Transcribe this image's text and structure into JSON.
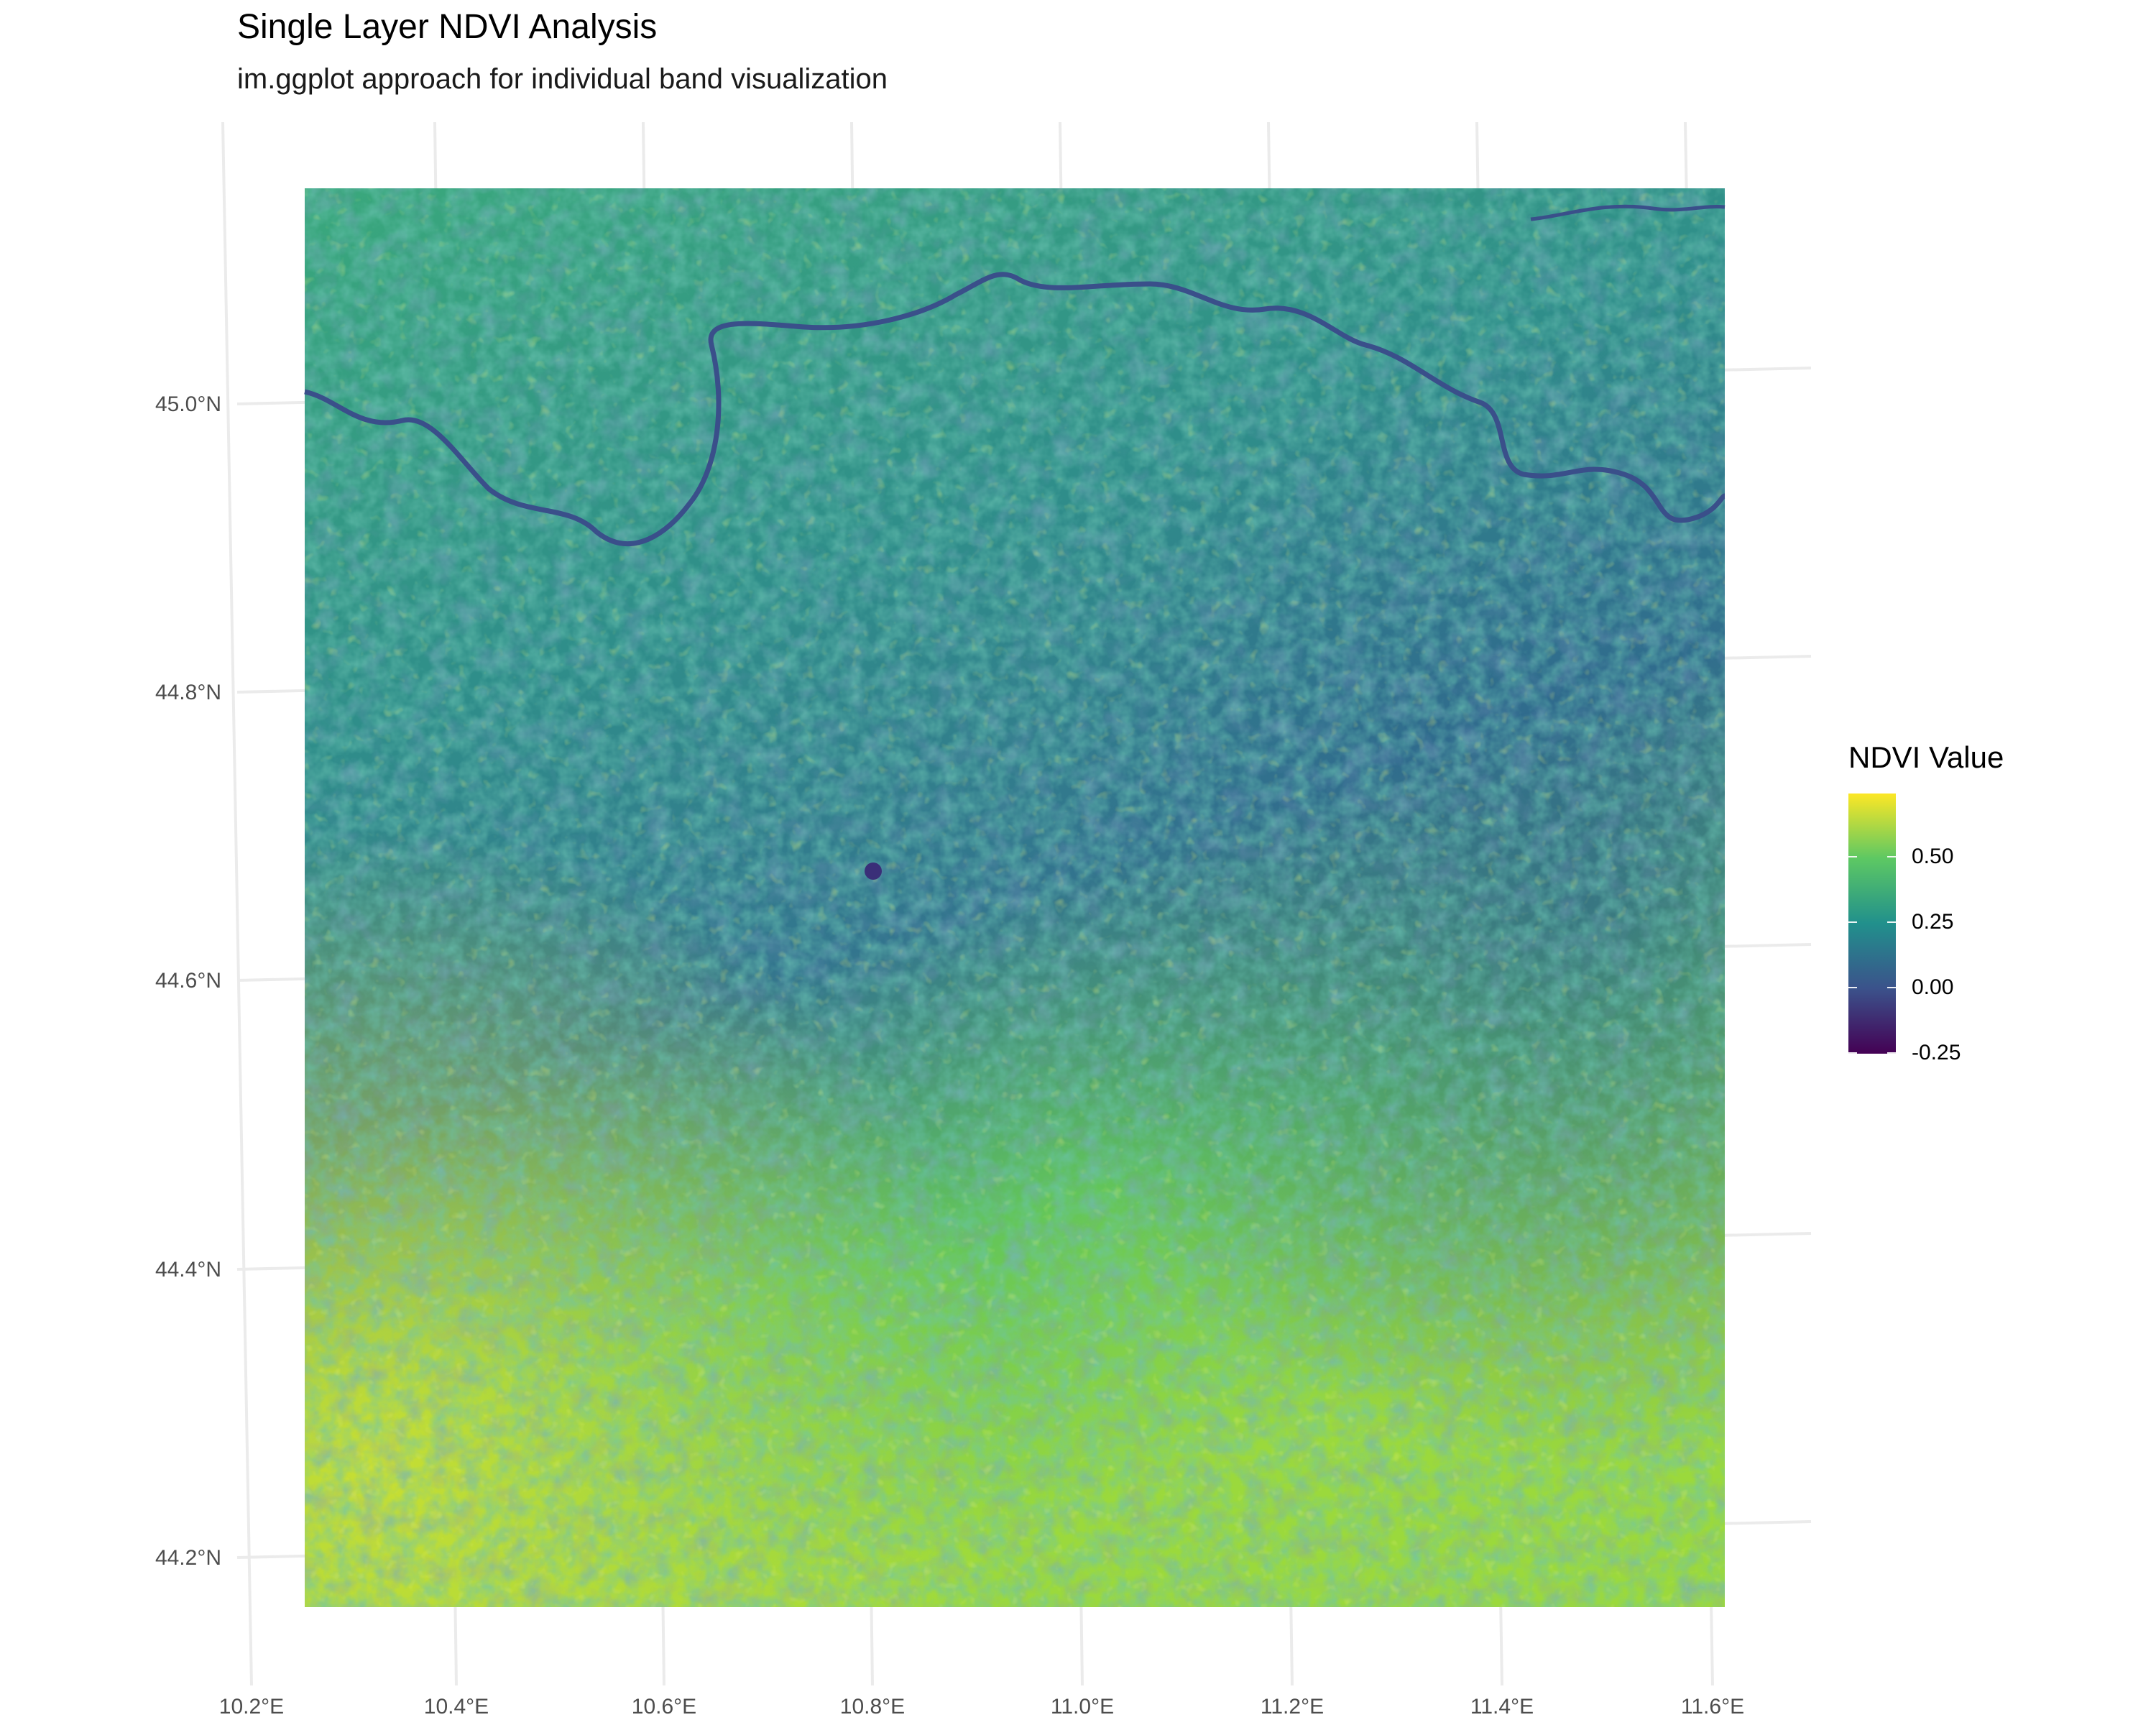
{
  "title": "Single Layer NDVI Analysis",
  "subtitle": "im.ggplot approach for individual band visualization",
  "map": {
    "type": "raster",
    "variable": "NDVI",
    "palette": [
      "#440154",
      "#3b528b",
      "#21908c",
      "#5dc863",
      "#fde725"
    ],
    "extent": {
      "lon": [
        10.25,
        11.62
      ],
      "lat": [
        44.16,
        45.15
      ]
    },
    "x_ticks": [
      "10.2°E",
      "10.4°E",
      "10.6°E",
      "10.8°E",
      "11.0°E",
      "11.2°E",
      "11.4°E",
      "11.6°E"
    ],
    "y_ticks": [
      "45.0°N",
      "44.8°N",
      "44.6°N",
      "44.4°N",
      "44.2°N"
    ],
    "river_present": true
  },
  "legend": {
    "title": "NDVI Value",
    "labels": [
      "0.50",
      "0.25",
      "0.00",
      "-0.25"
    ],
    "range": [
      -0.3,
      0.75
    ]
  }
}
